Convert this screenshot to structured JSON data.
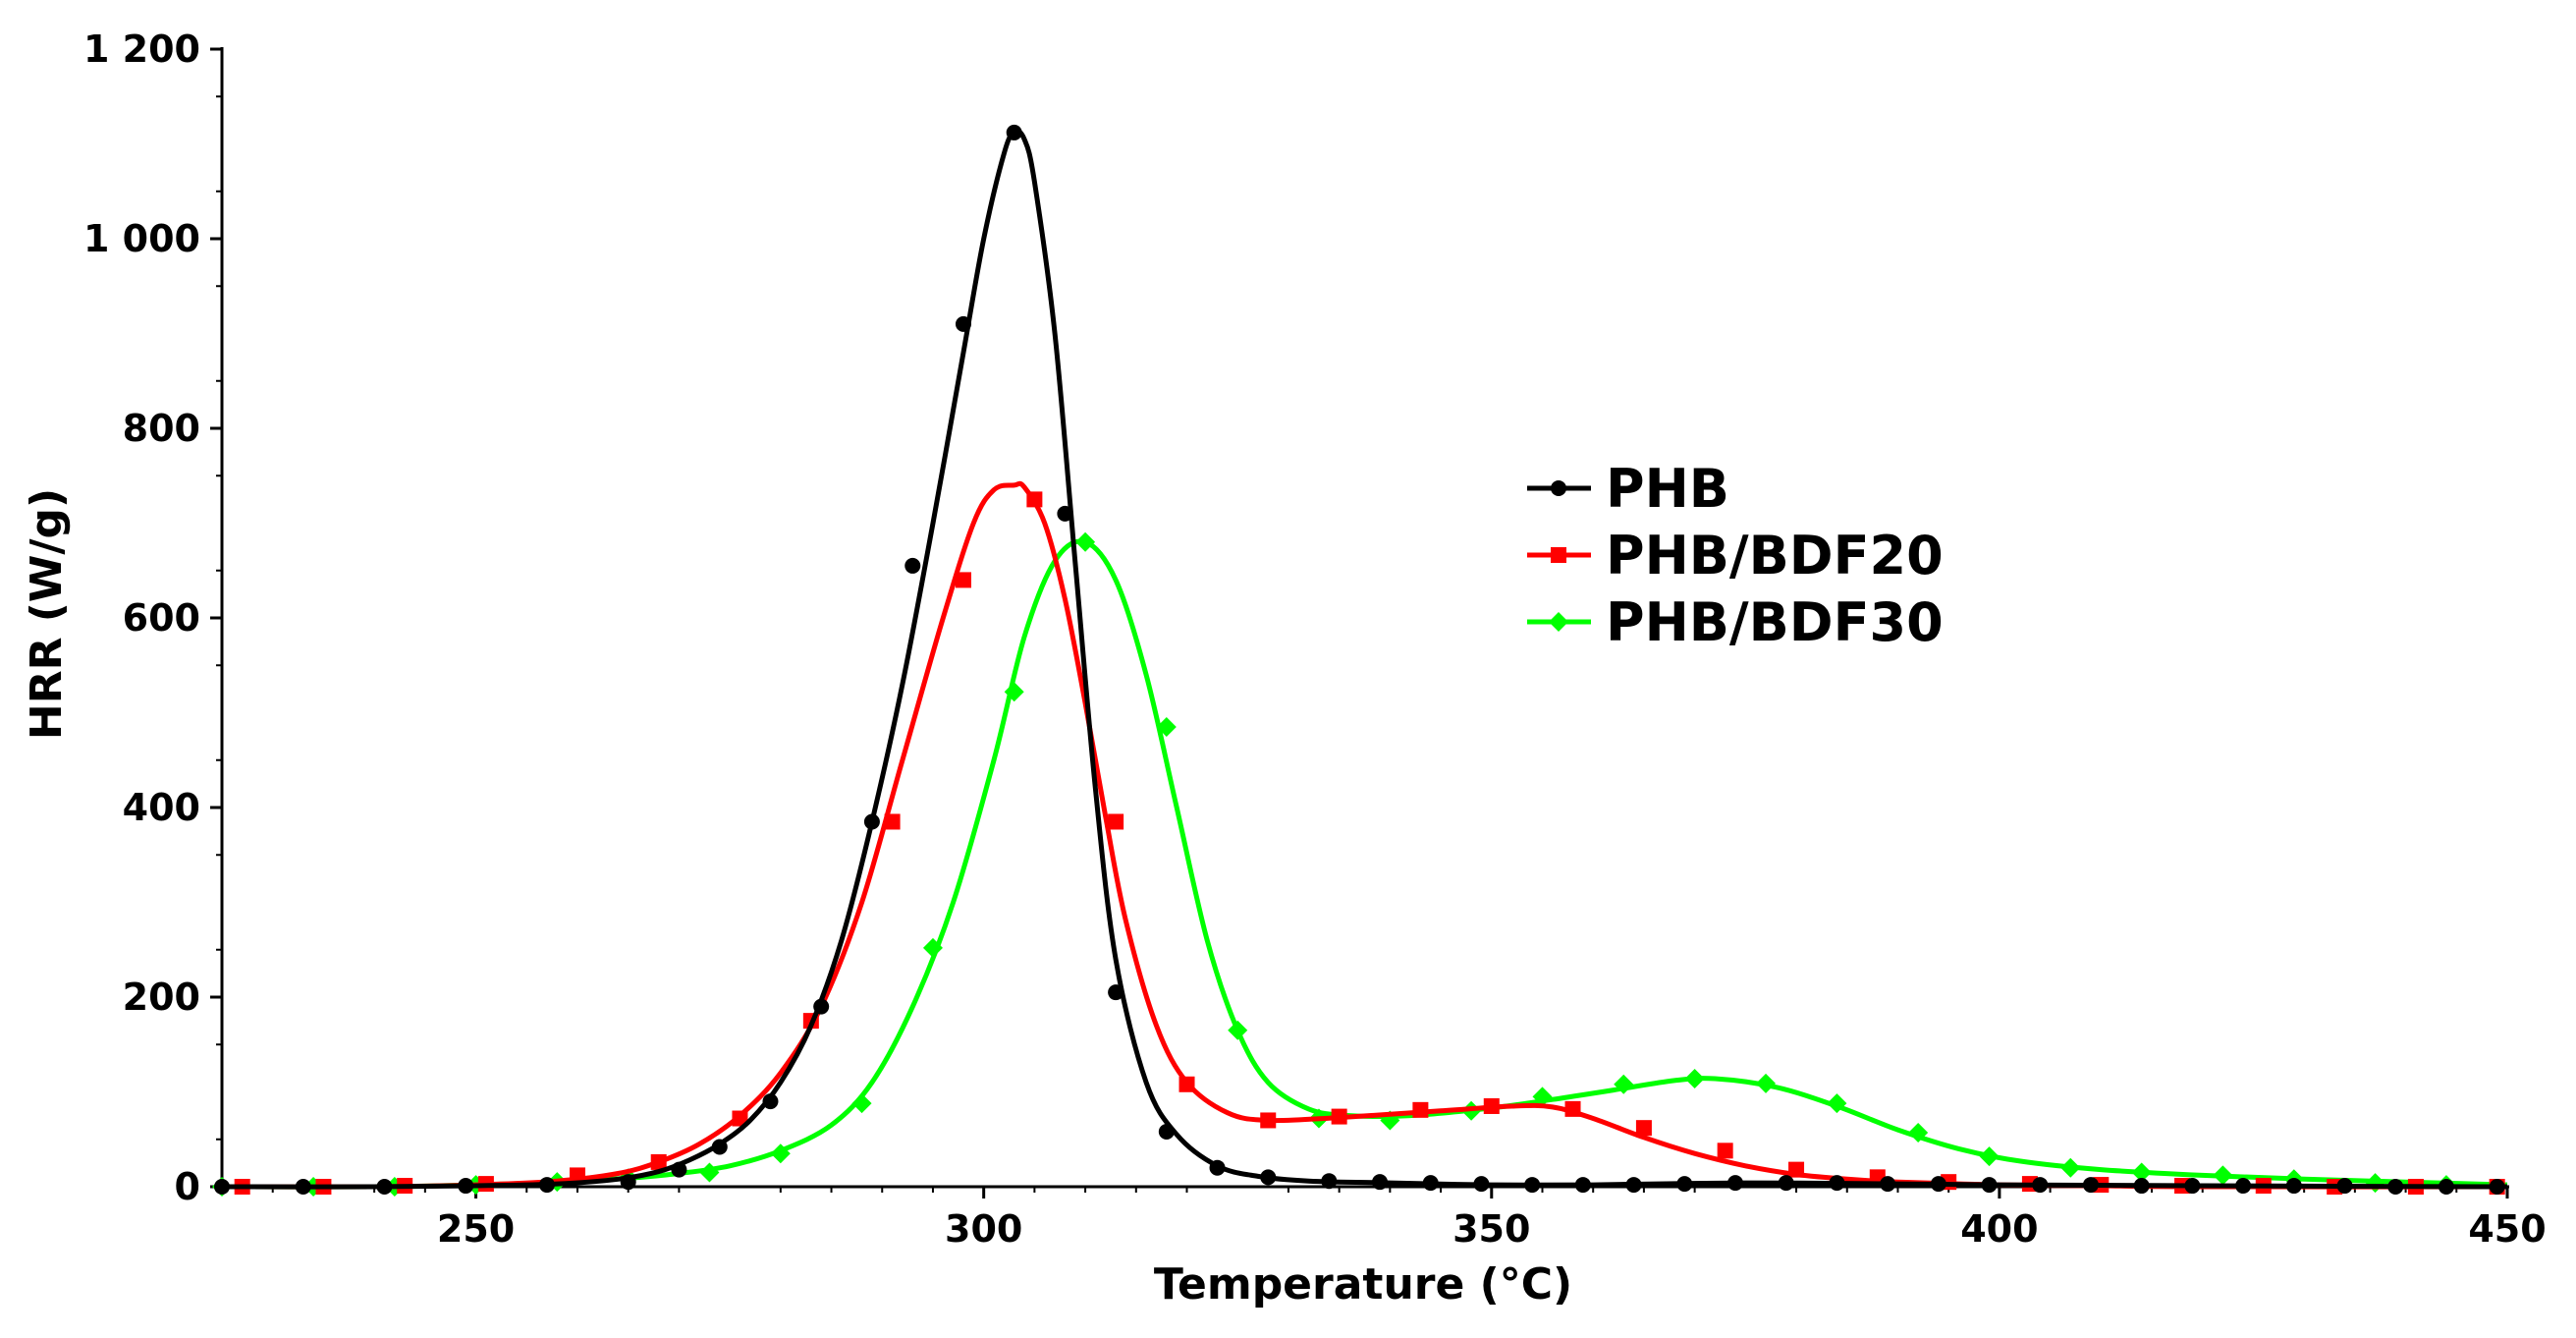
{
  "chart_data": {
    "type": "line",
    "title": "",
    "xlabel": "Temperature (°C)",
    "ylabel": "HRR (W/g)",
    "xlim": [
      225,
      450
    ],
    "ylim": [
      0,
      1200
    ],
    "xticks": [
      250,
      300,
      350,
      400,
      450
    ],
    "xtick_labels": [
      "250",
      "300",
      "350",
      "400",
      "450"
    ],
    "yticks": [
      0,
      200,
      400,
      600,
      800,
      1000,
      1200
    ],
    "ytick_labels": [
      "0",
      "200",
      "400",
      "600",
      "800",
      "1 000",
      "1 200"
    ],
    "grid": false,
    "legend_position": "center-right",
    "series": [
      {
        "name": "PHB",
        "color": "#000000",
        "marker": "circle",
        "x": [
          225,
          240,
          250,
          258,
          264,
          268,
          271,
          274,
          277,
          280,
          283,
          286,
          289,
          292,
          295,
          298,
          300,
          302,
          303,
          304,
          305,
          307,
          309,
          311,
          313,
          316,
          319,
          323,
          327,
          332,
          340,
          350,
          360,
          375,
          390,
          400,
          420,
          450
        ],
        "y": [
          0,
          0,
          1,
          3,
          8,
          16,
          28,
          45,
          70,
          110,
          170,
          260,
          385,
          530,
          700,
          880,
          1000,
          1090,
          1112,
          1105,
          1060,
          900,
          660,
          420,
          240,
          110,
          55,
          22,
          11,
          6,
          4,
          2,
          2,
          4,
          3,
          2,
          1,
          0
        ],
        "marker_x": [
          225,
          233,
          241,
          249,
          257,
          265,
          270,
          274,
          279,
          284,
          289,
          293,
          298,
          303,
          308,
          313,
          318,
          323,
          328,
          334,
          339,
          344,
          349,
          354,
          359,
          364,
          369,
          374,
          379,
          384,
          389,
          394,
          399,
          404,
          409,
          414,
          419,
          424,
          429,
          434,
          439,
          444,
          449
        ],
        "marker_y": [
          0,
          0,
          0,
          1,
          2,
          5,
          18,
          42,
          90,
          190,
          385,
          655,
          910,
          1112,
          710,
          205,
          58,
          20,
          10,
          6,
          5,
          4,
          3,
          2,
          2,
          2,
          3,
          4,
          4,
          4,
          3,
          3,
          2,
          2,
          2,
          1,
          1,
          1,
          1,
          1,
          0,
          0,
          0
        ]
      },
      {
        "name": "PHB/BDF20",
        "color": "#ff0000",
        "marker": "square",
        "x": [
          225,
          240,
          250,
          258,
          264,
          268,
          272,
          276,
          280,
          284,
          288,
          292,
          296,
          299,
          301,
          303,
          304,
          306,
          308,
          310,
          312,
          314,
          317,
          320,
          324,
          328,
          335,
          345,
          352,
          356,
          360,
          365,
          370,
          375,
          380,
          385,
          390,
          400,
          410,
          420,
          450
        ],
        "y": [
          0,
          0,
          2,
          6,
          14,
          26,
          45,
          75,
          120,
          190,
          300,
          450,
          600,
          700,
          735,
          740,
          738,
          700,
          620,
          510,
          390,
          280,
          170,
          110,
          78,
          70,
          73,
          80,
          85,
          84,
          72,
          52,
          35,
          22,
          13,
          8,
          5,
          2,
          1,
          0,
          0
        ],
        "marker_x": [
          227,
          235,
          243,
          251,
          260,
          268,
          276,
          283,
          291,
          298,
          305,
          313,
          320,
          328,
          335,
          343,
          350,
          358,
          365,
          373,
          380,
          388,
          395,
          403,
          410,
          418,
          426,
          433,
          441,
          449
        ],
        "marker_y": [
          0,
          0,
          1,
          3,
          12,
          26,
          72,
          175,
          385,
          640,
          725,
          385,
          108,
          70,
          74,
          81,
          85,
          82,
          62,
          38,
          18,
          10,
          5,
          3,
          2,
          1,
          1,
          0,
          0,
          0
        ]
      },
      {
        "name": "PHB/BDF30",
        "color": "#00ff00",
        "marker": "diamond",
        "x": [
          225,
          240,
          250,
          258,
          265,
          270,
          275,
          280,
          285,
          289,
          293,
          297,
          301,
          304,
          307,
          310,
          313,
          316,
          319,
          322,
          325,
          328,
          332,
          336,
          342,
          350,
          356,
          362,
          368,
          372,
          378,
          384,
          390,
          396,
          402,
          410,
          420,
          430,
          440,
          450
        ],
        "y": [
          0,
          0,
          2,
          5,
          9,
          14,
          22,
          38,
          65,
          110,
          190,
          300,
          450,
          580,
          660,
          680,
          640,
          540,
          400,
          260,
          165,
          110,
          82,
          75,
          75,
          83,
          92,
          102,
          112,
          114,
          105,
          85,
          60,
          40,
          27,
          18,
          12,
          8,
          5,
          2
        ],
        "marker_x": [
          225,
          234,
          242,
          250,
          258,
          265,
          273,
          280,
          288,
          295,
          303,
          310,
          318,
          325,
          333,
          340,
          348,
          355,
          363,
          370,
          377,
          384,
          392,
          399,
          407,
          414,
          422,
          429,
          437,
          444
        ],
        "marker_y": [
          0,
          0,
          0,
          2,
          5,
          9,
          15,
          35,
          88,
          252,
          522,
          680,
          485,
          165,
          72,
          70,
          80,
          95,
          108,
          114,
          109,
          88,
          57,
          32,
          20,
          15,
          12,
          8,
          4,
          2
        ]
      }
    ]
  }
}
